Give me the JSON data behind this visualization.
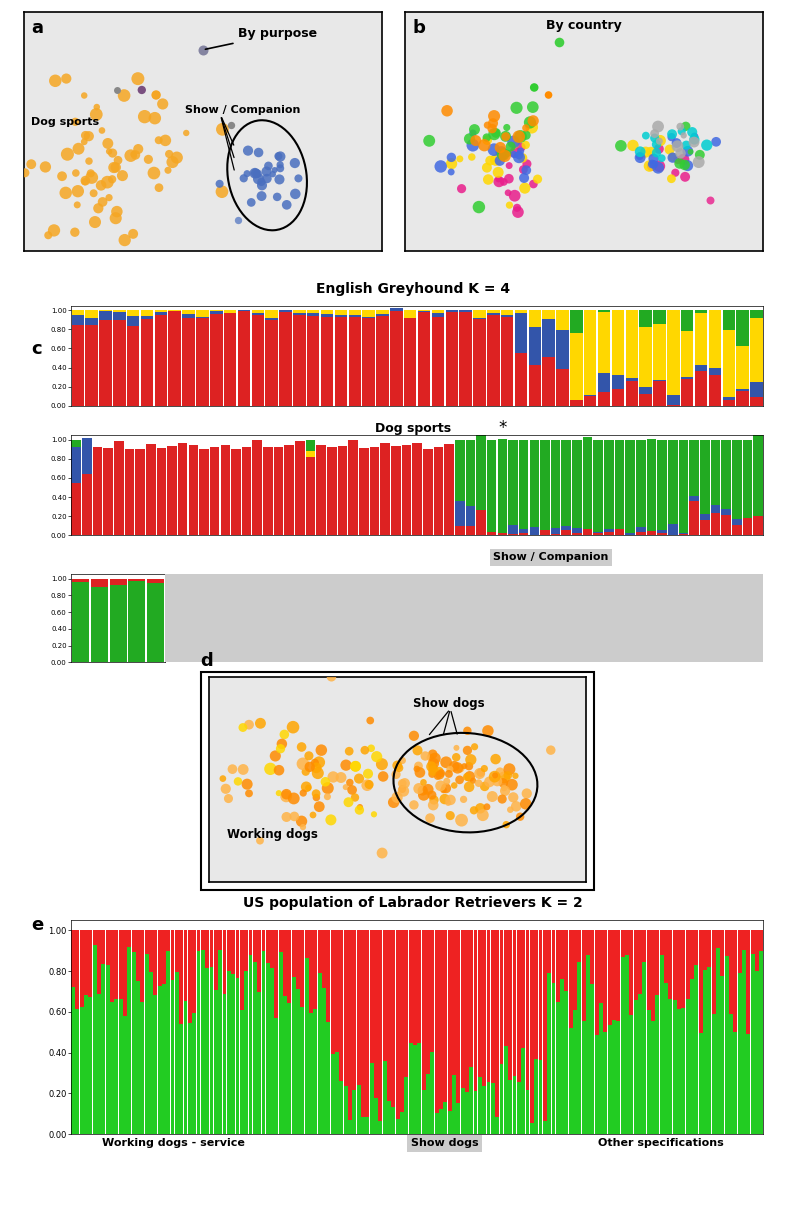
{
  "panel_a_title": "By purpose",
  "panel_b_title": "By country",
  "panel_c_title": "English Greyhound K = 4",
  "panel_d_label": "d",
  "panel_e_title": "US population of Labrador Retrievers K = 2",
  "dog_sports_label": "Dog sports",
  "show_companion_label": "Show / Companion",
  "working_dogs_label": "Working dogs",
  "show_dogs_label": "Show dogs",
  "working_dogs_service_label": "Working dogs - service",
  "show_dogs_label2": "Show dogs",
  "other_spec_label": "Other specifications",
  "bg_color": "#e8e8e8",
  "c_label": "c",
  "e_label": "e",
  "a_label": "a",
  "b_label": "b",
  "bar_red": "#DD2222",
  "bar_blue": "#3355AA",
  "bar_yellow": "#FFD700",
  "bar_green": "#22AA22",
  "e_green": "#22CC22",
  "e_red": "#EE2222"
}
